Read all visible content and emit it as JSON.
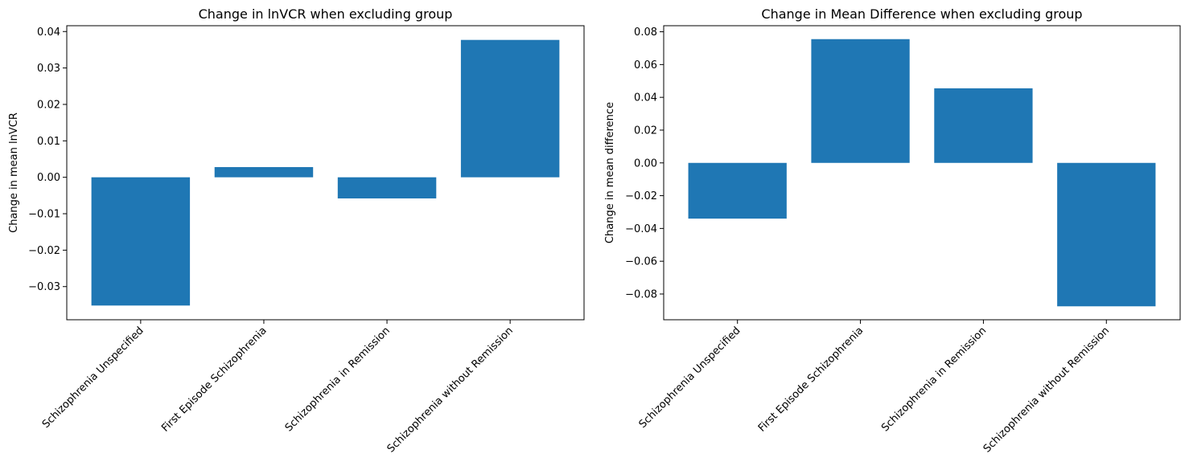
{
  "chart_data": [
    {
      "type": "bar",
      "title": "Change in lnVCR when excluding group",
      "xlabel": "",
      "ylabel": "Change in mean lnVCR",
      "categories": [
        "Schizophrenia Unspecified",
        "First Episode Schizophrenia",
        "Schizophrenia in Remission",
        "Schizophrenia without Remission"
      ],
      "values": [
        -0.0352,
        0.0028,
        -0.0058,
        0.0377
      ],
      "ylim": [
        -0.0391,
        0.0416
      ],
      "yticks": [
        -0.03,
        -0.02,
        -0.01,
        0.0,
        0.01,
        0.02,
        0.03,
        0.04
      ],
      "ytick_labels": [
        "−0.03",
        "−0.02",
        "−0.01",
        "0.00",
        "0.01",
        "0.02",
        "0.03",
        "0.04"
      ],
      "bar_color": "#1f77b4",
      "grid": false,
      "tick_label_rotation": 45
    },
    {
      "type": "bar",
      "title": "Change in Mean Difference when excluding group",
      "xlabel": "",
      "ylabel": "Change in mean difference",
      "categories": [
        "Schizophrenia Unspecified",
        "First Episode Schizophrenia",
        "Schizophrenia in Remission",
        "Schizophrenia without Remission"
      ],
      "values": [
        -0.034,
        0.0755,
        0.0455,
        -0.0875
      ],
      "ylim": [
        -0.0957,
        0.0837
      ],
      "yticks": [
        -0.08,
        -0.06,
        -0.04,
        -0.02,
        0.0,
        0.02,
        0.04,
        0.06,
        0.08
      ],
      "ytick_labels": [
        "−0.08",
        "−0.06",
        "−0.04",
        "−0.02",
        "0.00",
        "0.02",
        "0.04",
        "0.06",
        "0.08"
      ],
      "bar_color": "#1f77b4",
      "grid": false,
      "tick_label_rotation": 45
    }
  ]
}
